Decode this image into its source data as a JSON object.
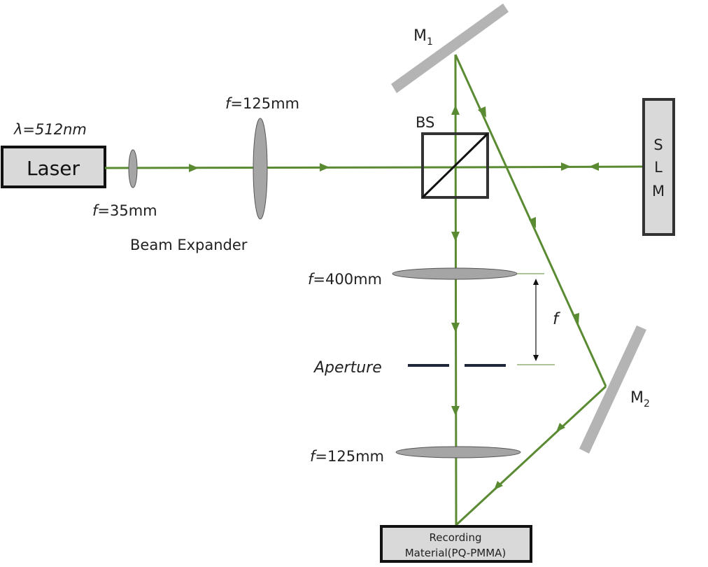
{
  "colors": {
    "beam": "#5a8a32",
    "optic_gray": "#b4b4b4",
    "lens_fill": "#a5a5a5",
    "box_fill": "#d9d9d9",
    "outline": "#333333",
    "aperture": "#1e2638"
  },
  "labels": {
    "wavelength": "λ=512nm",
    "laser": "Laser",
    "lens1_f": "f",
    "lens1_val": "=35mm",
    "lens2_f": "f",
    "lens2_val": "=125mm",
    "beam_expander": "Beam Expander",
    "bs": "BS",
    "m1": "M",
    "m1_sub": "1",
    "m2": "M",
    "m2_sub": "2",
    "slm": [
      "S",
      "L",
      "M"
    ],
    "lens3_f": "f",
    "lens3_val": "=400mm",
    "distance_f": "f",
    "aperture": "Aperture",
    "lens4_f": "f",
    "lens4_val": "=125mm",
    "recording_line1": "Recording",
    "recording_line2": "Material(PQ-PMMA)"
  }
}
